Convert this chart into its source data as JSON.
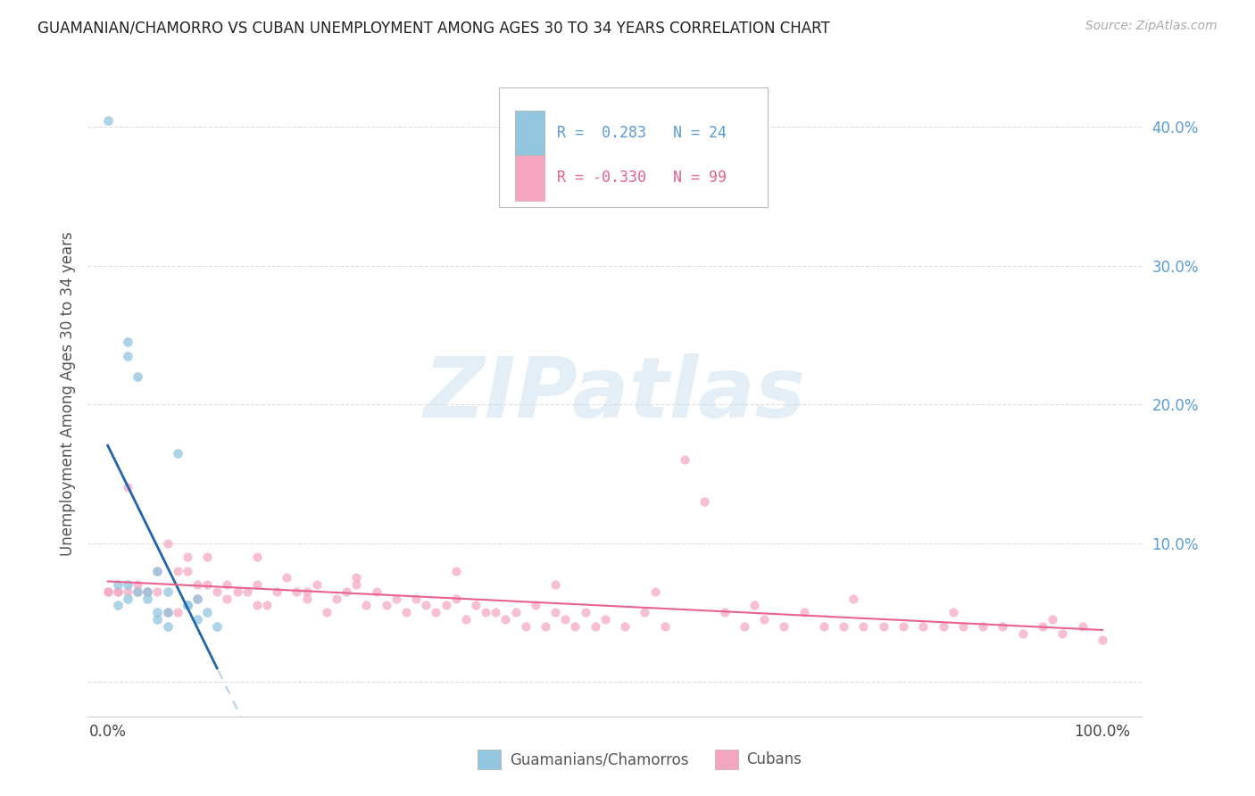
{
  "title": "GUAMANIAN/CHAMORRO VS CUBAN UNEMPLOYMENT AMONG AGES 30 TO 34 YEARS CORRELATION CHART",
  "source": "Source: ZipAtlas.com",
  "ylabel": "Unemployment Among Ages 30 to 34 years",
  "y_ticks": [
    0.0,
    0.1,
    0.2,
    0.3,
    0.4
  ],
  "y_tick_labels": [
    "",
    "10.0%",
    "20.0%",
    "30.0%",
    "40.0%"
  ],
  "x_lim": [
    -0.02,
    1.04
  ],
  "y_lim": [
    -0.025,
    0.44
  ],
  "legend_R_blue": " 0.283",
  "legend_N_blue": "24",
  "legend_R_pink": "-0.330",
  "legend_N_pink": "99",
  "color_blue": "#92c5de",
  "color_pink": "#f4a6c0",
  "color_trendline_blue": "#2166ac",
  "color_trendline_pink": "#e8628a",
  "color_dash_blue": "#92c5de",
  "watermark_color": "#d8e8f0",
  "background_color": "#ffffff",
  "grid_color": "#dddddd",
  "ytick_color": "#5b9bd5",
  "xtick_color": "#444444",
  "guamanian_x": [
    0.0,
    0.01,
    0.01,
    0.02,
    0.02,
    0.02,
    0.02,
    0.03,
    0.03,
    0.04,
    0.04,
    0.05,
    0.05,
    0.05,
    0.06,
    0.06,
    0.06,
    0.07,
    0.08,
    0.08,
    0.09,
    0.09,
    0.1,
    0.11
  ],
  "guamanian_y": [
    0.405,
    0.07,
    0.055,
    0.245,
    0.235,
    0.07,
    0.06,
    0.22,
    0.065,
    0.065,
    0.06,
    0.08,
    0.05,
    0.045,
    0.065,
    0.05,
    0.04,
    0.165,
    0.055,
    0.055,
    0.06,
    0.045,
    0.05,
    0.04
  ],
  "cuban_x": [
    0.0,
    0.0,
    0.01,
    0.01,
    0.02,
    0.02,
    0.03,
    0.03,
    0.04,
    0.04,
    0.05,
    0.05,
    0.06,
    0.06,
    0.07,
    0.07,
    0.08,
    0.08,
    0.09,
    0.09,
    0.1,
    0.1,
    0.11,
    0.12,
    0.12,
    0.13,
    0.14,
    0.15,
    0.15,
    0.16,
    0.17,
    0.18,
    0.19,
    0.2,
    0.21,
    0.22,
    0.23,
    0.24,
    0.25,
    0.26,
    0.27,
    0.28,
    0.29,
    0.3,
    0.31,
    0.32,
    0.33,
    0.34,
    0.35,
    0.36,
    0.37,
    0.38,
    0.39,
    0.4,
    0.41,
    0.42,
    0.43,
    0.44,
    0.45,
    0.46,
    0.47,
    0.48,
    0.49,
    0.5,
    0.52,
    0.54,
    0.56,
    0.58,
    0.6,
    0.62,
    0.64,
    0.66,
    0.68,
    0.7,
    0.72,
    0.74,
    0.76,
    0.78,
    0.8,
    0.82,
    0.84,
    0.86,
    0.88,
    0.9,
    0.92,
    0.94,
    0.96,
    0.98,
    1.0,
    0.15,
    0.25,
    0.35,
    0.45,
    0.55,
    0.65,
    0.75,
    0.85,
    0.95,
    0.2
  ],
  "cuban_y": [
    0.065,
    0.065,
    0.065,
    0.065,
    0.14,
    0.065,
    0.065,
    0.07,
    0.065,
    0.065,
    0.065,
    0.08,
    0.05,
    0.1,
    0.05,
    0.08,
    0.08,
    0.09,
    0.06,
    0.07,
    0.07,
    0.09,
    0.065,
    0.07,
    0.06,
    0.065,
    0.065,
    0.055,
    0.07,
    0.055,
    0.065,
    0.075,
    0.065,
    0.06,
    0.07,
    0.05,
    0.06,
    0.065,
    0.07,
    0.055,
    0.065,
    0.055,
    0.06,
    0.05,
    0.06,
    0.055,
    0.05,
    0.055,
    0.06,
    0.045,
    0.055,
    0.05,
    0.05,
    0.045,
    0.05,
    0.04,
    0.055,
    0.04,
    0.05,
    0.045,
    0.04,
    0.05,
    0.04,
    0.045,
    0.04,
    0.05,
    0.04,
    0.16,
    0.13,
    0.05,
    0.04,
    0.045,
    0.04,
    0.05,
    0.04,
    0.04,
    0.04,
    0.04,
    0.04,
    0.04,
    0.04,
    0.04,
    0.04,
    0.04,
    0.035,
    0.04,
    0.035,
    0.04,
    0.03,
    0.09,
    0.075,
    0.08,
    0.07,
    0.065,
    0.055,
    0.06,
    0.05,
    0.045,
    0.065
  ]
}
